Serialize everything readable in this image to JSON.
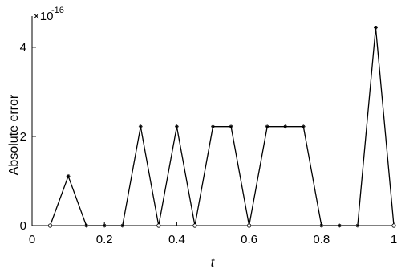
{
  "chart_data": {
    "type": "line",
    "title": "",
    "xlabel": "t",
    "ylabel": "Absolute error",
    "xlim": [
      0,
      1
    ],
    "ylim": [
      0,
      4.7
    ],
    "y_scale_exponent": {
      "base": "×10",
      "power": "-16"
    },
    "xticks": [
      0,
      0.2,
      0.4,
      0.6,
      0.8,
      1
    ],
    "xtick_labels": [
      "0",
      "0.2",
      "0.4",
      "0.6",
      "0.8",
      "1"
    ],
    "yticks": [
      0,
      2,
      4
    ],
    "ytick_labels": [
      "0",
      "2",
      "4"
    ],
    "grid": false,
    "legend": "none",
    "colors": {
      "line": "#000000",
      "axes": "#000000",
      "background": "#ffffff"
    },
    "series": [
      {
        "x": [
          0.05,
          0.1,
          0.15,
          0.2,
          0.25,
          0.3,
          0.35,
          0.4,
          0.45,
          0.5,
          0.55,
          0.6,
          0.65,
          0.7,
          0.75,
          0.8,
          0.85,
          0.9,
          0.95,
          1.0
        ],
        "values": [
          0,
          1.11,
          0,
          0,
          0,
          2.22,
          0,
          2.22,
          0,
          2.22,
          2.22,
          0,
          2.22,
          2.22,
          2.22,
          0,
          0,
          0,
          4.44,
          0
        ],
        "markers": [
          "o",
          "*",
          "*",
          "*",
          "*",
          "*",
          "o",
          "*",
          "o",
          "*",
          "*",
          "o",
          "*",
          "*",
          "*",
          "*",
          "*",
          "*",
          "*",
          "o"
        ]
      }
    ]
  }
}
